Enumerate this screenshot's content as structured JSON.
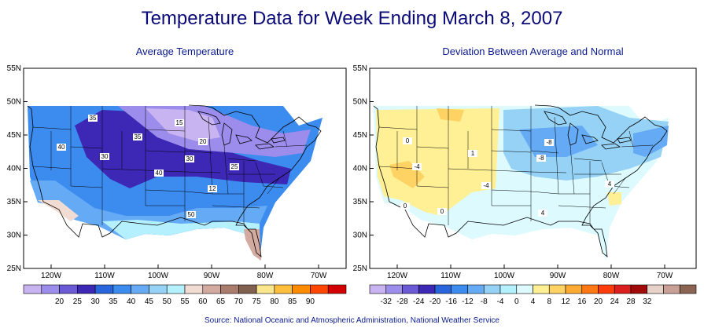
{
  "title": "Temperature Data for Week Ending March 8, 2007",
  "left_panel": {
    "subtitle": "Average Temperature",
    "lat_labels": [
      "55N",
      "50N",
      "45N",
      "40N",
      "35N",
      "30N",
      "25N"
    ],
    "lon_labels": [
      "120W",
      "110W",
      "100W",
      "90W",
      "80W",
      "70W"
    ],
    "contour_labels": [
      "35",
      "15",
      "40",
      "35",
      "20",
      "30",
      "25",
      "30",
      "40",
      "12",
      "50"
    ],
    "legend": {
      "colors": [
        "#c8b4f0",
        "#9c8ceb",
        "#6a5ad6",
        "#3c28b4",
        "#2864dc",
        "#3c8cf0",
        "#64aaf5",
        "#96d2f5",
        "#b4f0ff",
        "#f0dcd2",
        "#d2aaa0",
        "#aa7c6e",
        "#826050",
        "#fae68c",
        "#ffbe3c",
        "#ff8c00",
        "#ff4600",
        "#d20000"
      ],
      "labels": [
        "20",
        "25",
        "30",
        "35",
        "40",
        "45",
        "50",
        "55",
        "60",
        "65",
        "70",
        "75",
        "80",
        "85",
        "90"
      ]
    }
  },
  "right_panel": {
    "subtitle": "Deviation Between Average and Normal",
    "lat_labels": [
      "55N",
      "50N",
      "45N",
      "40N",
      "35N",
      "30N",
      "25N"
    ],
    "lon_labels": [
      "120W",
      "110W",
      "100W",
      "90W",
      "80W",
      "70W"
    ],
    "contour_labels": [
      "0",
      "-4",
      "-8",
      "-8",
      "1",
      "0",
      "4",
      "-4",
      "0",
      "4"
    ],
    "legend": {
      "colors": [
        "#c8b4f0",
        "#9c8ceb",
        "#6a5ad6",
        "#3c28b4",
        "#2864dc",
        "#3c8cf0",
        "#64aaf5",
        "#96d2f5",
        "#b4f0ff",
        "#dcfaff",
        "#fff096",
        "#ffd264",
        "#ffaa32",
        "#ff7814",
        "#ff3c0a",
        "#dc1e1e",
        "#a00a0a",
        "#e6d2c8",
        "#c8a096",
        "#8c6452"
      ],
      "labels": [
        "-32",
        "-28",
        "-24",
        "-20",
        "-16",
        "-12",
        "-8",
        "-4",
        "0",
        "4",
        "8",
        "12",
        "16",
        "20",
        "24",
        "28",
        "32"
      ]
    }
  },
  "source": "Source:  National Oceanic and Atmospheric Administration, National Weather Service"
}
